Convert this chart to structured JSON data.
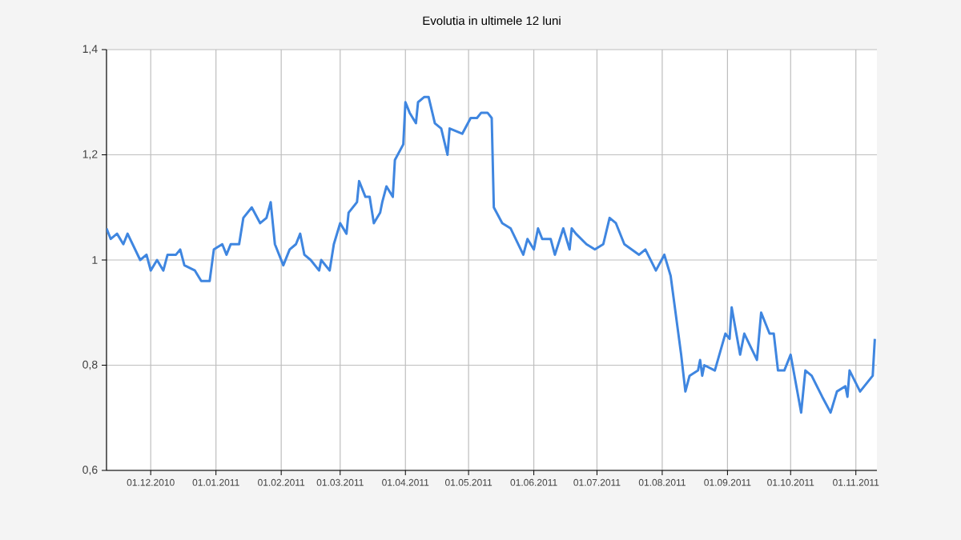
{
  "chart_data": {
    "type": "line",
    "title": "Evolutia in ultimele 12 luni",
    "x": [
      "2010-11-10",
      "2010-11-12",
      "2010-11-15",
      "2010-11-18",
      "2010-11-20",
      "2010-11-26",
      "2010-11-29",
      "2010-12-01",
      "2010-12-04",
      "2010-12-07",
      "2010-12-09",
      "2010-12-13",
      "2010-12-15",
      "2010-12-17",
      "2010-12-22",
      "2010-12-25",
      "2010-12-29",
      "2010-12-31",
      "2011-01-04",
      "2011-01-06",
      "2011-01-08",
      "2011-01-12",
      "2011-01-14",
      "2011-01-18",
      "2011-01-22",
      "2011-01-25",
      "2011-01-27",
      "2011-01-29",
      "2011-02-02",
      "2011-02-05",
      "2011-02-08",
      "2011-02-10",
      "2011-02-12",
      "2011-02-15",
      "2011-02-19",
      "2011-02-20",
      "2011-02-24",
      "2011-02-26",
      "2011-03-01",
      "2011-03-04",
      "2011-03-05",
      "2011-03-09",
      "2011-03-10",
      "2011-03-13",
      "2011-03-15",
      "2011-03-17",
      "2011-03-20",
      "2011-03-21",
      "2011-03-23",
      "2011-03-26",
      "2011-03-27",
      "2011-03-31",
      "2011-04-01",
      "2011-04-03",
      "2011-04-06",
      "2011-04-07",
      "2011-04-10",
      "2011-04-12",
      "2011-04-15",
      "2011-04-18",
      "2011-04-21",
      "2011-04-22",
      "2011-04-28",
      "2011-05-02",
      "2011-05-05",
      "2011-05-07",
      "2011-05-10",
      "2011-05-12",
      "2011-05-13",
      "2011-05-17",
      "2011-05-21",
      "2011-05-27",
      "2011-05-29",
      "2011-06-01",
      "2011-06-03",
      "2011-06-05",
      "2011-06-09",
      "2011-06-11",
      "2011-06-15",
      "2011-06-18",
      "2011-06-19",
      "2011-06-21",
      "2011-06-26",
      "2011-06-30",
      "2011-07-04",
      "2011-07-07",
      "2011-07-10",
      "2011-07-14",
      "2011-07-21",
      "2011-07-24",
      "2011-07-29",
      "2011-08-02",
      "2011-08-05",
      "2011-08-10",
      "2011-08-12",
      "2011-08-14",
      "2011-08-18",
      "2011-08-19",
      "2011-08-20",
      "2011-08-21",
      "2011-08-26",
      "2011-08-31",
      "2011-09-02",
      "2011-09-03",
      "2011-09-07",
      "2011-09-09",
      "2011-09-15",
      "2011-09-17",
      "2011-09-21",
      "2011-09-23",
      "2011-09-25",
      "2011-09-28",
      "2011-10-01",
      "2011-10-06",
      "2011-10-08",
      "2011-10-11",
      "2011-10-16",
      "2011-10-20",
      "2011-10-23",
      "2011-10-27",
      "2011-10-28",
      "2011-10-29",
      "2011-11-03",
      "2011-11-09",
      "2011-11-10"
    ],
    "series": [
      {
        "color": "#3f86e0",
        "values": [
          1.06,
          1.04,
          1.05,
          1.03,
          1.05,
          1.0,
          1.01,
          0.98,
          1.0,
          0.98,
          1.01,
          1.01,
          1.02,
          0.99,
          0.98,
          0.96,
          0.96,
          1.02,
          1.03,
          1.01,
          1.03,
          1.03,
          1.08,
          1.1,
          1.07,
          1.08,
          1.11,
          1.03,
          0.99,
          1.02,
          1.03,
          1.05,
          1.01,
          1.0,
          0.98,
          1.0,
          0.98,
          1.03,
          1.07,
          1.05,
          1.09,
          1.11,
          1.15,
          1.12,
          1.12,
          1.07,
          1.09,
          1.11,
          1.14,
          1.12,
          1.19,
          1.22,
          1.3,
          1.28,
          1.26,
          1.3,
          1.31,
          1.31,
          1.26,
          1.25,
          1.2,
          1.25,
          1.24,
          1.27,
          1.27,
          1.28,
          1.28,
          1.27,
          1.1,
          1.07,
          1.06,
          1.01,
          1.04,
          1.02,
          1.06,
          1.04,
          1.04,
          1.01,
          1.06,
          1.02,
          1.06,
          1.05,
          1.03,
          1.02,
          1.03,
          1.08,
          1.07,
          1.03,
          1.01,
          1.02,
          0.98,
          1.01,
          0.97,
          0.82,
          0.75,
          0.78,
          0.79,
          0.81,
          0.78,
          0.8,
          0.79,
          0.86,
          0.85,
          0.91,
          0.82,
          0.86,
          0.81,
          0.9,
          0.86,
          0.86,
          0.79,
          0.79,
          0.82,
          0.71,
          0.79,
          0.78,
          0.74,
          0.71,
          0.75,
          0.76,
          0.74,
          0.79,
          0.75,
          0.78,
          0.85
        ]
      }
    ],
    "xlim": [
      "2010-11-10",
      "2011-11-11"
    ],
    "xticks": [
      {
        "value": "2010-12-01",
        "label": "01.12.2010"
      },
      {
        "value": "2011-01-01",
        "label": "01.01.2011"
      },
      {
        "value": "2011-02-01",
        "label": "01.02.2011"
      },
      {
        "value": "2011-03-01",
        "label": "01.03.2011"
      },
      {
        "value": "2011-04-01",
        "label": "01.04.2011"
      },
      {
        "value": "2011-05-01",
        "label": "01.05.2011"
      },
      {
        "value": "2011-06-01",
        "label": "01.06.2011"
      },
      {
        "value": "2011-07-01",
        "label": "01.07.2011"
      },
      {
        "value": "2011-08-01",
        "label": "01.08.2011"
      },
      {
        "value": "2011-09-01",
        "label": "01.09.2011"
      },
      {
        "value": "2011-10-01",
        "label": "01.10.2011"
      },
      {
        "value": "2011-11-01",
        "label": "01.11.2011"
      }
    ],
    "ylim": [
      0.6,
      1.4
    ],
    "yticks": [
      {
        "value": 0.6,
        "label": "0,6"
      },
      {
        "value": 0.8,
        "label": "0,8"
      },
      1,
      {
        "value": 1.2,
        "label": "1,2"
      },
      {
        "value": 1.4,
        "label": "1,4"
      }
    ],
    "grid": true,
    "marker": "none",
    "line_style": "solid"
  }
}
